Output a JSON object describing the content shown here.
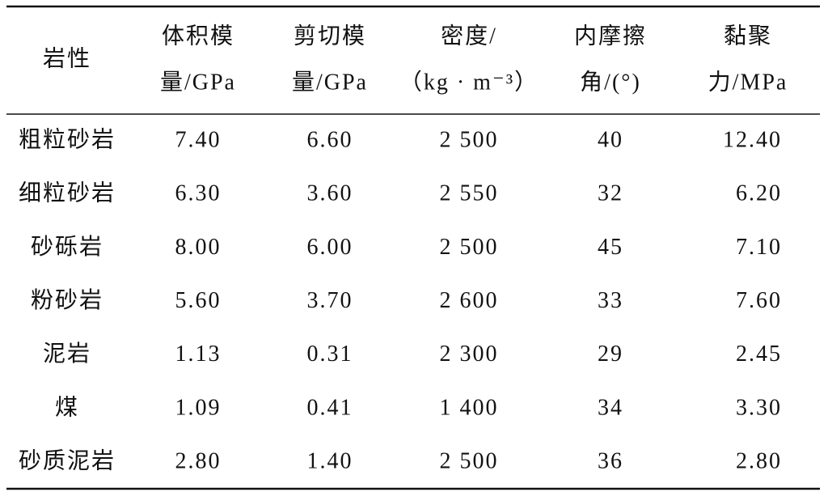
{
  "table": {
    "header": [
      [
        "岩性"
      ],
      [
        "体积模",
        "量/GPa"
      ],
      [
        "剪切模",
        "量/GPa"
      ],
      [
        "密度/",
        "（kg · m⁻³）"
      ],
      [
        "内摩擦",
        "角/(°)"
      ],
      [
        "黏聚",
        "力/MPa"
      ]
    ],
    "rows": [
      [
        "粗粒砂岩",
        "7.40",
        "6.60",
        "2 500",
        "40",
        "12.40"
      ],
      [
        "细粒砂岩",
        "6.30",
        "3.60",
        "2 550",
        "32",
        "6.20"
      ],
      [
        "砂砾岩",
        "8.00",
        "6.00",
        "2 500",
        "45",
        "7.10"
      ],
      [
        "粉砂岩",
        "5.60",
        "3.70",
        "2 600",
        "33",
        "7.60"
      ],
      [
        "泥岩",
        "1.13",
        "0.31",
        "2 300",
        "29",
        "2.45"
      ],
      [
        "煤",
        "1.09",
        "0.41",
        "1 400",
        "34",
        "3.30"
      ],
      [
        "砂质泥岩",
        "2.80",
        "1.40",
        "2 500",
        "36",
        "2.80"
      ]
    ]
  }
}
